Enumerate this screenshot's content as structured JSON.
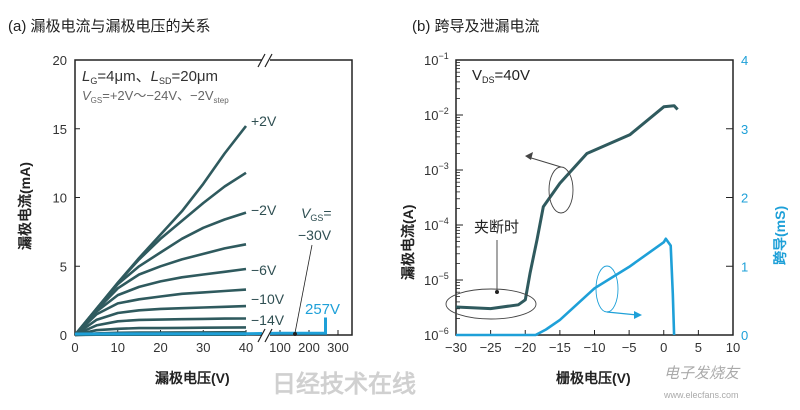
{
  "colors": {
    "dark": "#2f5a5e",
    "blue": "#1ea0d8",
    "text": "#333333"
  },
  "watermark": {
    "text": "日经技术在线",
    "logo": "电子发烧友",
    "url": "www.elecfans.com"
  },
  "chart_data": [
    {
      "type": "line",
      "title": "(a) 漏极电流与漏极电压的关系",
      "xlabel": "漏极电压(V)",
      "ylabel": "漏极电流(mA)",
      "xlim": [
        0,
        340
      ],
      "x_break": [
        40,
        100
      ],
      "ylim": [
        0,
        20
      ],
      "xticks": [
        "0",
        "10",
        "20",
        "30",
        "40",
        "100",
        "200",
        "300"
      ],
      "yticks": [
        "0",
        "5",
        "10",
        "15",
        "20"
      ],
      "annotation": {
        "l1": "L",
        "l1sub": "G",
        "l1a": "=4μm、",
        "l2": "L",
        "l2sub": "SD",
        "l2a": "=20μm",
        "v": "V",
        "vsub": "GS",
        "va": "=+2V～−24V、−2V",
        "vstep": "step"
      },
      "x": [
        0,
        5,
        10,
        15,
        20,
        25,
        30,
        35,
        40
      ],
      "series": [
        {
          "vgs": 2,
          "label": "+2V",
          "values": [
            0,
            1.9,
            3.8,
            5.6,
            7.3,
            9.0,
            11.0,
            13.2,
            15.2
          ]
        },
        {
          "vgs": 0,
          "values": [
            0,
            1.9,
            3.8,
            5.5,
            7.0,
            8.3,
            9.6,
            10.8,
            11.8
          ]
        },
        {
          "vgs": -2,
          "label": "−2V",
          "values": [
            0,
            1.9,
            3.7,
            5.0,
            6.0,
            7.0,
            7.8,
            8.4,
            8.9
          ]
        },
        {
          "vgs": -4,
          "values": [
            0,
            1.8,
            3.4,
            4.4,
            5.0,
            5.5,
            5.9,
            6.3,
            6.6
          ]
        },
        {
          "vgs": -6,
          "label": "−6V",
          "values": [
            0,
            1.7,
            2.9,
            3.5,
            3.9,
            4.2,
            4.4,
            4.6,
            4.8
          ]
        },
        {
          "vgs": -8,
          "values": [
            0,
            1.5,
            2.3,
            2.6,
            2.8,
            3.0,
            3.1,
            3.2,
            3.3
          ]
        },
        {
          "vgs": -10,
          "label": "−10V",
          "values": [
            0,
            1.1,
            1.6,
            1.8,
            1.9,
            1.95,
            2.0,
            2.05,
            2.1
          ]
        },
        {
          "vgs": -12,
          "values": [
            0,
            0.7,
            1.0,
            1.1,
            1.12,
            1.15,
            1.17,
            1.19,
            1.2
          ]
        },
        {
          "vgs": -14,
          "label": "−14V",
          "values": [
            0,
            0.35,
            0.45,
            0.5,
            0.5,
            0.52,
            0.53,
            0.54,
            0.55
          ]
        },
        {
          "vgs": -16,
          "values": [
            0,
            0.12,
            0.16,
            0.18,
            0.18,
            0.19,
            0.19,
            0.2,
            0.2
          ]
        },
        {
          "vgs": -18,
          "values": [
            0,
            0.04,
            0.05,
            0.06,
            0.06,
            0.06,
            0.06,
            0.06,
            0.06
          ]
        },
        {
          "vgs": -20,
          "values": [
            0,
            0.02,
            0.02,
            0.02,
            0.02,
            0.02,
            0.02,
            0.02,
            0.02
          ]
        }
      ],
      "breakdown_series": {
        "vgs": -30,
        "label_v": "V",
        "label_sub": "GS",
        "label_eq": "=",
        "label_val": "−30V",
        "breakdown_label": "257V",
        "x": [
          0,
          40,
          100,
          150,
          257,
          257
        ],
        "values": [
          0,
          0.02,
          0.05,
          0.05,
          0.05,
          1.2
        ]
      }
    },
    {
      "type": "line",
      "title": "(b) 跨导及泄漏电流",
      "xlabel": "栅极电压(V)",
      "ylabel": "漏极电流(A)",
      "y2label": "跨导(mS)",
      "xlim": [
        -30,
        10
      ],
      "ylim": [
        1e-06,
        0.1
      ],
      "yscale": "log",
      "y2lim": [
        0,
        4
      ],
      "xticks": [
        "−30",
        "−25",
        "−20",
        "−15",
        "−10",
        "−5",
        "0",
        "5",
        "10"
      ],
      "yticks": [
        "-6",
        "-5",
        "-4",
        "-3",
        "-2",
        "-1"
      ],
      "y2ticks": [
        "0",
        "1",
        "2",
        "3",
        "4"
      ],
      "annotation": "V",
      "annotation_sub": "DS",
      "annotation_val": "=40V",
      "pinchoff_label": "夹断时",
      "series": [
        {
          "name": "drain-current",
          "axis": "left",
          "x": [
            -30,
            -25,
            -21,
            -20,
            -19.3,
            -18.3,
            -17.4,
            -15,
            -11.1,
            -4.9,
            0,
            1.5,
            2
          ],
          "log10_values": [
            -5.49,
            -5.52,
            -5.45,
            -5.36,
            -4.87,
            -4.27,
            -3.67,
            -3.24,
            -2.7,
            -2.36,
            -1.85,
            -1.83,
            -1.9
          ]
        },
        {
          "name": "transconductance",
          "axis": "right",
          "x": [
            -30,
            -18.5,
            -17,
            -15,
            -10,
            -5,
            0,
            0.3,
            1.0,
            1.3,
            1.5
          ],
          "values": [
            0,
            0,
            0.08,
            0.22,
            0.68,
            0.99,
            1.35,
            1.4,
            1.3,
            0.6,
            0
          ]
        }
      ]
    }
  ]
}
